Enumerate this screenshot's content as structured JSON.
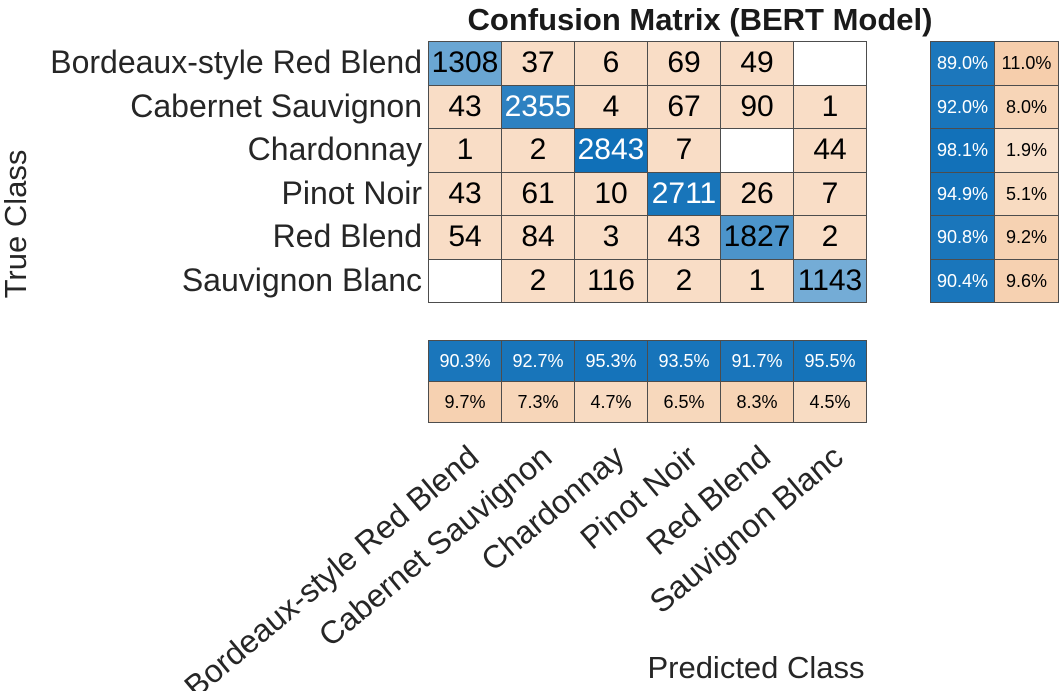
{
  "title": "Confusion Matrix (BERT Model)",
  "axes": {
    "x_label": "Predicted Class",
    "y_label": "True Class"
  },
  "chart_data": {
    "type": "heatmap",
    "title": "Confusion Matrix (BERT Model)",
    "xlabel": "Predicted Class",
    "ylabel": "True Class",
    "categories": [
      "Bordeaux-style Red Blend",
      "Cabernet Sauvignon",
      "Chardonnay",
      "Pinot Noir",
      "Red Blend",
      "Sauvignon Blanc"
    ],
    "matrix": [
      [
        1308,
        37,
        6,
        69,
        49,
        null
      ],
      [
        43,
        2355,
        4,
        67,
        90,
        1
      ],
      [
        1,
        2,
        2843,
        7,
        null,
        44
      ],
      [
        43,
        61,
        10,
        2711,
        26,
        7
      ],
      [
        54,
        84,
        3,
        43,
        1827,
        2
      ],
      [
        null,
        2,
        116,
        2,
        1,
        1143
      ]
    ],
    "row_summary": {
      "true_positive_rate": [
        "89.0%",
        "92.0%",
        "98.1%",
        "94.9%",
        "90.8%",
        "90.4%"
      ],
      "false_negative_rate": [
        "11.0%",
        "8.0%",
        "1.9%",
        "5.1%",
        "9.2%",
        "9.6%"
      ]
    },
    "col_summary": {
      "positive_predictive_value": [
        "90.3%",
        "92.7%",
        "95.3%",
        "93.5%",
        "91.7%",
        "95.5%"
      ],
      "false_discovery_rate": [
        "9.7%",
        "7.3%",
        "4.7%",
        "6.5%",
        "8.3%",
        "4.5%"
      ]
    },
    "legend_position": "none",
    "grid": true
  },
  "colors": {
    "diagonal_base": "#1070B8",
    "off_diagonal_base": "#E67E22",
    "grid_line": "#4D4D4D",
    "empty_cell": "#FFFFFF",
    "label_text": "#262626",
    "cell_text_dark": "#000000",
    "cell_text_light": "#FFFFFF"
  }
}
